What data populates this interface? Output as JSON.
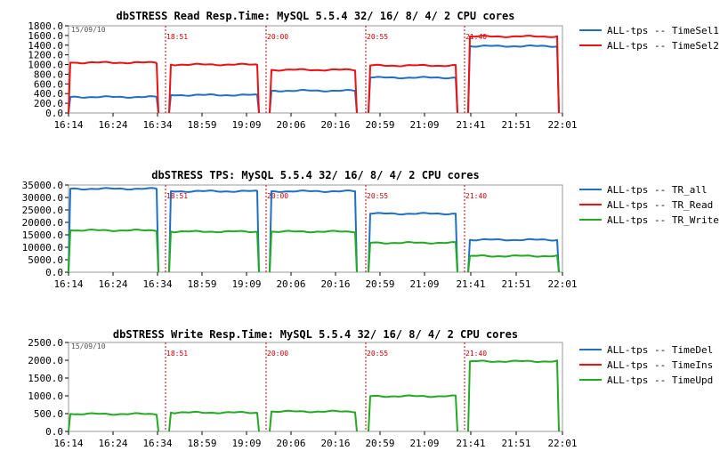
{
  "chart_data": [
    {
      "type": "line",
      "title": "dbSTRESS Read Resp.Time: MySQL 5.5.4 32/ 16/ 8/ 4/ 2 CPU cores",
      "date_stamp": "15/09/10",
      "y_ticks": [
        "0.0",
        "200.0",
        "400.0",
        "600.0",
        "800.0",
        "1000.0",
        "1200.0",
        "1400.0",
        "1600.0",
        "1800.0"
      ],
      "ylim": [
        0,
        1800
      ],
      "x_ticks": [
        "16:14",
        "16:24",
        "16:34",
        "18:59",
        "19:09",
        "20:06",
        "20:16",
        "20:59",
        "21:09",
        "21:41",
        "21:51",
        "22:01"
      ],
      "markers": [
        "18:51",
        "20:00",
        "20:55",
        "21:40"
      ],
      "legend": [
        {
          "name": "ALL-tps -- TimeSel1",
          "color": "#1f6fc4"
        },
        {
          "name": "ALL-tps -- TimeSel2",
          "color": "#ee1111"
        }
      ],
      "segments": [
        {
          "TimeSel1": 330,
          "TimeSel2": 1040
        },
        {
          "TimeSel1": 370,
          "TimeSel2": 1000
        },
        {
          "TimeSel1": 460,
          "TimeSel2": 890
        },
        {
          "TimeSel1": 730,
          "TimeSel2": 980
        },
        {
          "TimeSel1": 1380,
          "TimeSel2": 1580
        }
      ]
    },
    {
      "type": "line",
      "title": "dbSTRESS TPS: MySQL 5.5.4 32/ 16/ 8/ 4/ 2 CPU cores",
      "date_stamp": "",
      "y_ticks": [
        "0.0",
        "5000.0",
        "10000.0",
        "15000.0",
        "20000.0",
        "25000.0",
        "30000.0",
        "35000.0"
      ],
      "ylim": [
        0,
        35000
      ],
      "x_ticks": [
        "16:14",
        "16:24",
        "16:34",
        "18:59",
        "19:09",
        "20:06",
        "20:16",
        "20:59",
        "21:09",
        "21:41",
        "21:51",
        "22:01"
      ],
      "markers": [
        "18:51",
        "20:00",
        "20:55",
        "21:40"
      ],
      "legend": [
        {
          "name": "ALL-tps -- TR_all",
          "color": "#1f6fc4"
        },
        {
          "name": "ALL-tps -- TR_Read",
          "color": "#ee1111"
        },
        {
          "name": "ALL-tps -- TR_Write",
          "color": "#22aa22"
        }
      ],
      "segments": [
        {
          "TR_all": 33500,
          "TR_Read": null,
          "TR_Write": 16800
        },
        {
          "TR_all": 32500,
          "TR_Read": null,
          "TR_Write": 16300
        },
        {
          "TR_all": 32500,
          "TR_Read": null,
          "TR_Write": 16300
        },
        {
          "TR_all": 23500,
          "TR_Read": null,
          "TR_Write": 11800
        },
        {
          "TR_all": 13000,
          "TR_Read": null,
          "TR_Write": 6500
        }
      ]
    },
    {
      "type": "line",
      "title": "dbSTRESS Write Resp.Time: MySQL 5.5.4 32/ 16/ 8/ 4/ 2 CPU cores",
      "date_stamp": "15/09/10",
      "y_ticks": [
        "0.0",
        "500.0",
        "1000.0",
        "1500.0",
        "2000.0",
        "2500.0"
      ],
      "ylim": [
        0,
        2500
      ],
      "x_ticks": [
        "16:14",
        "16:24",
        "16:34",
        "18:59",
        "19:09",
        "20:06",
        "20:16",
        "20:59",
        "21:09",
        "21:41",
        "21:51",
        "22:01"
      ],
      "markers": [
        "18:51",
        "20:00",
        "20:55",
        "21:40"
      ],
      "legend": [
        {
          "name": "ALL-tps -- TimeDel",
          "color": "#1f6fc4"
        },
        {
          "name": "ALL-tps -- TimeIns",
          "color": "#ee1111"
        },
        {
          "name": "ALL-tps -- TimeUpd",
          "color": "#22aa22"
        }
      ],
      "segments": [
        {
          "TimeDel": null,
          "TimeIns": null,
          "TimeUpd": 490
        },
        {
          "TimeDel": null,
          "TimeIns": null,
          "TimeUpd": 530
        },
        {
          "TimeDel": null,
          "TimeIns": null,
          "TimeUpd": 560
        },
        {
          "TimeDel": null,
          "TimeIns": null,
          "TimeUpd": 990
        },
        {
          "TimeDel": null,
          "TimeIns": null,
          "TimeUpd": 1970
        }
      ]
    }
  ]
}
